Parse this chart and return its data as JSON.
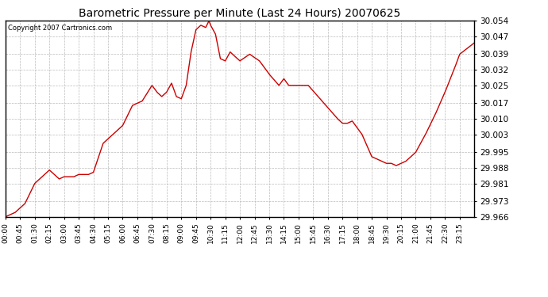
{
  "title": "Barometric Pressure per Minute (Last 24 Hours) 20070625",
  "copyright": "Copyright 2007 Cartronics.com",
  "line_color": "#cc0000",
  "bg_color": "#ffffff",
  "plot_bg_color": "#ffffff",
  "grid_color": "#bbbbbb",
  "ylim": [
    29.966,
    30.054
  ],
  "yticks": [
    29.966,
    29.973,
    29.981,
    29.988,
    29.995,
    30.003,
    30.01,
    30.017,
    30.025,
    30.032,
    30.039,
    30.047,
    30.054
  ],
  "xtick_labels": [
    "00:00",
    "00:45",
    "01:30",
    "02:15",
    "03:00",
    "03:45",
    "04:30",
    "05:15",
    "06:00",
    "06:45",
    "07:30",
    "08:15",
    "09:00",
    "09:45",
    "10:30",
    "11:15",
    "12:00",
    "12:45",
    "13:30",
    "14:15",
    "15:00",
    "15:45",
    "16:30",
    "17:15",
    "18:00",
    "18:45",
    "19:30",
    "20:15",
    "21:00",
    "21:45",
    "22:30",
    "23:15"
  ],
  "keypoints_min": [
    0,
    30,
    60,
    90,
    120,
    135,
    150,
    165,
    180,
    210,
    225,
    255,
    270,
    300,
    315,
    345,
    360,
    390,
    420,
    450,
    465,
    480,
    495,
    510,
    525,
    540,
    555,
    570,
    585,
    600,
    615,
    625,
    630,
    645,
    660,
    675,
    690,
    720,
    750,
    780,
    810,
    840,
    855,
    870,
    900,
    930,
    960,
    990,
    1020,
    1035,
    1050,
    1065,
    1080,
    1095,
    1110,
    1125,
    1140,
    1155,
    1170,
    1185,
    1200,
    1230,
    1260,
    1290,
    1320,
    1350,
    1380,
    1395,
    1439
  ],
  "keypoints_val": [
    29.966,
    29.968,
    29.972,
    29.981,
    29.985,
    29.987,
    29.985,
    29.983,
    29.984,
    29.984,
    29.985,
    29.985,
    29.986,
    29.999,
    30.001,
    30.005,
    30.007,
    30.016,
    30.018,
    30.025,
    30.022,
    30.02,
    30.022,
    30.026,
    30.02,
    30.019,
    30.025,
    30.04,
    30.05,
    30.052,
    30.051,
    30.054,
    30.052,
    30.048,
    30.037,
    30.036,
    30.04,
    30.036,
    30.039,
    30.036,
    30.03,
    30.025,
    30.028,
    30.025,
    30.025,
    30.025,
    30.02,
    30.015,
    30.01,
    30.008,
    30.008,
    30.009,
    30.006,
    30.003,
    29.998,
    29.993,
    29.992,
    29.991,
    29.99,
    29.99,
    29.989,
    29.991,
    29.995,
    30.003,
    30.012,
    30.022,
    30.033,
    30.039,
    30.044
  ]
}
